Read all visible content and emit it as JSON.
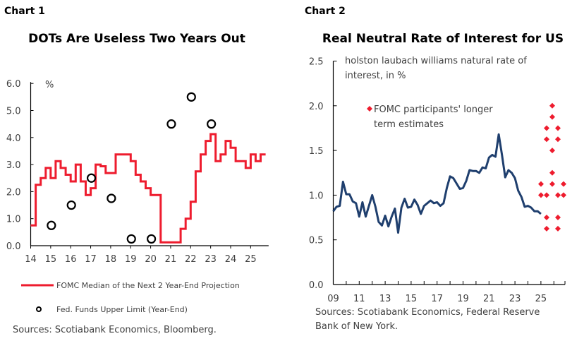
{
  "chart_data": [
    {
      "header": "Chart 1",
      "title": "DOTs Are Useless Two Years Out",
      "type": "line",
      "ylabel": "%",
      "ylim": [
        0,
        6
      ],
      "yticks": [
        "0.0",
        "1.0",
        "2.0",
        "3.0",
        "4.0",
        "5.0",
        "6.0"
      ],
      "xlim": [
        14,
        25.9
      ],
      "xticks": [
        "14",
        "15",
        "16",
        "17",
        "18",
        "19",
        "20",
        "21",
        "22",
        "23",
        "24",
        "25"
      ],
      "grid": false,
      "legend_position": "bottom",
      "series": [
        {
          "name": "FOMC Median of the Next 2 Year-End Projection",
          "style": "step",
          "color": "#ee1c2e",
          "frequency": "quarterly",
          "start": "14Q1",
          "values": [
            0.75,
            2.25,
            2.5,
            2.875,
            2.5,
            3.125,
            2.875,
            2.625,
            2.375,
            3.0,
            2.375,
            1.875,
            2.125,
            3.0,
            2.9375,
            2.6875,
            2.6875,
            3.375,
            3.375,
            3.375,
            3.125,
            2.625,
            2.375,
            2.125,
            1.875,
            1.875,
            0.125,
            0.125,
            0.125,
            0.125,
            0.625,
            1.0,
            1.625,
            2.75,
            3.375,
            3.875,
            4.125,
            3.125,
            3.375,
            3.875,
            3.625,
            3.125,
            3.125,
            2.875,
            3.375,
            3.125,
            3.375
          ]
        },
        {
          "name": "Fed. Funds Upper Limit (Year-End)",
          "style": "scatter-circle",
          "color": "#000000",
          "x": [
            15,
            16,
            17,
            18,
            19,
            20,
            21,
            22,
            23
          ],
          "values": [
            0.75,
            1.5,
            2.5,
            1.75,
            0.25,
            0.25,
            4.5,
            5.5,
            4.5
          ]
        }
      ],
      "source": "Sources: Scotiabank Economics, Bloomberg."
    },
    {
      "header": "Chart 2",
      "title": "Real Neutral Rate of Interest for US",
      "type": "line",
      "ylim": [
        0,
        2.5
      ],
      "yticks": [
        "0.0",
        "0.5",
        "1.0",
        "1.5",
        "2.0",
        "2.5"
      ],
      "xlim": [
        9,
        26.8
      ],
      "xticks": [
        "09",
        "11",
        "13",
        "15",
        "17",
        "19",
        "21",
        "23",
        "25"
      ],
      "grid": false,
      "series": [
        {
          "name": "holston laubach williams natural rate of interest, in %",
          "name_line2": "interest, in %",
          "name_line1": "holston laubach williams natural rate of",
          "color": "#1f3f6e",
          "frequency": "quarterly",
          "start": "09Q1",
          "values": [
            0.82,
            0.87,
            0.88,
            1.15,
            1.01,
            1.01,
            0.93,
            0.91,
            0.76,
            0.92,
            0.76,
            0.88,
            1.0,
            0.87,
            0.7,
            0.66,
            0.77,
            0.65,
            0.76,
            0.85,
            0.58,
            0.86,
            0.96,
            0.86,
            0.87,
            0.95,
            0.89,
            0.79,
            0.88,
            0.91,
            0.94,
            0.91,
            0.92,
            0.88,
            0.91,
            1.08,
            1.21,
            1.19,
            1.13,
            1.07,
            1.08,
            1.16,
            1.28,
            1.27,
            1.27,
            1.25,
            1.31,
            1.3,
            1.42,
            1.45,
            1.43,
            1.68,
            1.45,
            1.2,
            1.28,
            1.25,
            1.19,
            1.05,
            0.98,
            0.87,
            0.88,
            0.86,
            0.82,
            0.82,
            0.79
          ]
        },
        {
          "name": "FOMC participants' longer term estimates",
          "name_line1": "FOMC participants' longer",
          "name_line2": "term estimates",
          "style": "scatter-diamond",
          "color": "#ee1c2e",
          "columns": [
            [
              1.125,
              1.0
            ],
            [
              1.75,
              1.625,
              1.0,
              0.75,
              0.625
            ],
            [
              2.0,
              1.875,
              1.5,
              1.25,
              1.125
            ],
            [
              1.75,
              1.625,
              1.0,
              0.75,
              0.625
            ],
            [
              1.125,
              1.0
            ]
          ]
        }
      ],
      "source_line1": "Sources: Scotiabank Economics, Federal Reserve",
      "source_line2": "Bank of New York."
    }
  ]
}
